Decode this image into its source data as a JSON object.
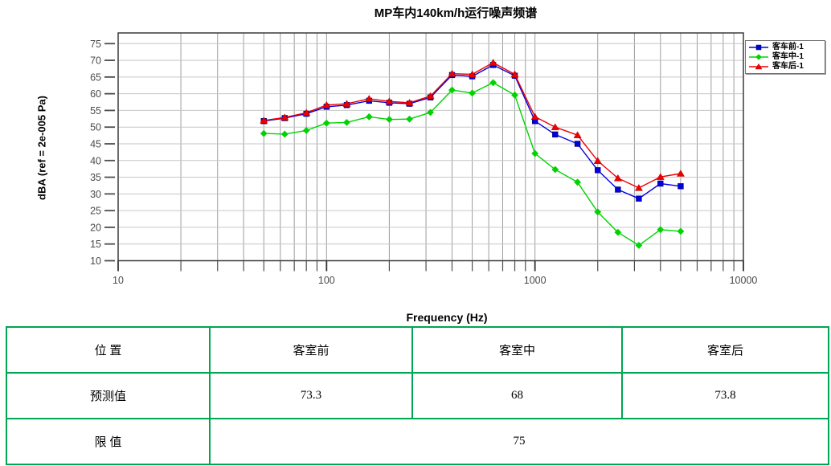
{
  "chart_data": {
    "type": "line",
    "title": "MP车内140km/h运行噪声频谱",
    "xlabel": "Frequency (Hz)",
    "ylabel": "dBA (ref = 2e-005 Pa)",
    "x_scale": "log",
    "xlim": [
      10,
      10000
    ],
    "ylim": [
      10,
      75
    ],
    "x_ticks": [
      10,
      100,
      1000,
      10000
    ],
    "y_ticks": [
      10,
      15,
      20,
      25,
      30,
      35,
      40,
      45,
      50,
      55,
      60,
      65,
      70,
      75
    ],
    "grid": true,
    "legend_position": "top-right",
    "x": [
      50,
      63,
      80,
      100,
      125,
      160,
      200,
      250,
      315,
      400,
      500,
      630,
      800,
      1000,
      1250,
      1600,
      2000,
      2500,
      3150,
      4000,
      5000
    ],
    "series": [
      {
        "name": "客车前-1",
        "color": "#0000dd",
        "marker": "square",
        "values": [
          51.8,
          52.7,
          54.0,
          56.1,
          56.6,
          57.9,
          57.3,
          57.0,
          58.9,
          65.6,
          65.2,
          68.6,
          65.4,
          51.8,
          47.8,
          45.0,
          37.1,
          31.3,
          28.6,
          33.1,
          32.3
        ]
      },
      {
        "name": "客车中-1",
        "color": "#00d300",
        "marker": "diamond",
        "values": [
          48.1,
          47.9,
          49.0,
          51.2,
          51.4,
          53.1,
          52.3,
          52.4,
          54.4,
          61.1,
          60.2,
          63.3,
          59.6,
          42.1,
          37.3,
          33.5,
          24.6,
          18.5,
          14.6,
          19.3,
          18.8
        ]
      },
      {
        "name": "客车后-1",
        "color": "#ee0000",
        "marker": "triangle",
        "values": [
          52.0,
          52.9,
          54.3,
          56.6,
          57.0,
          58.5,
          57.7,
          57.3,
          59.3,
          66.0,
          65.8,
          69.3,
          65.8,
          53.1,
          50.0,
          47.6,
          39.9,
          34.7,
          31.8,
          35.1,
          36.1
        ]
      }
    ]
  },
  "table": {
    "border_color": "#00a651",
    "header_row": {
      "label": "位 置",
      "cells": [
        "客室前",
        "客室中",
        "客室后"
      ]
    },
    "predicted_row": {
      "label": "预测值",
      "values": [
        "73.3",
        "68",
        "73.8"
      ]
    },
    "limit_row": {
      "label": "限 值",
      "value": "75"
    }
  }
}
